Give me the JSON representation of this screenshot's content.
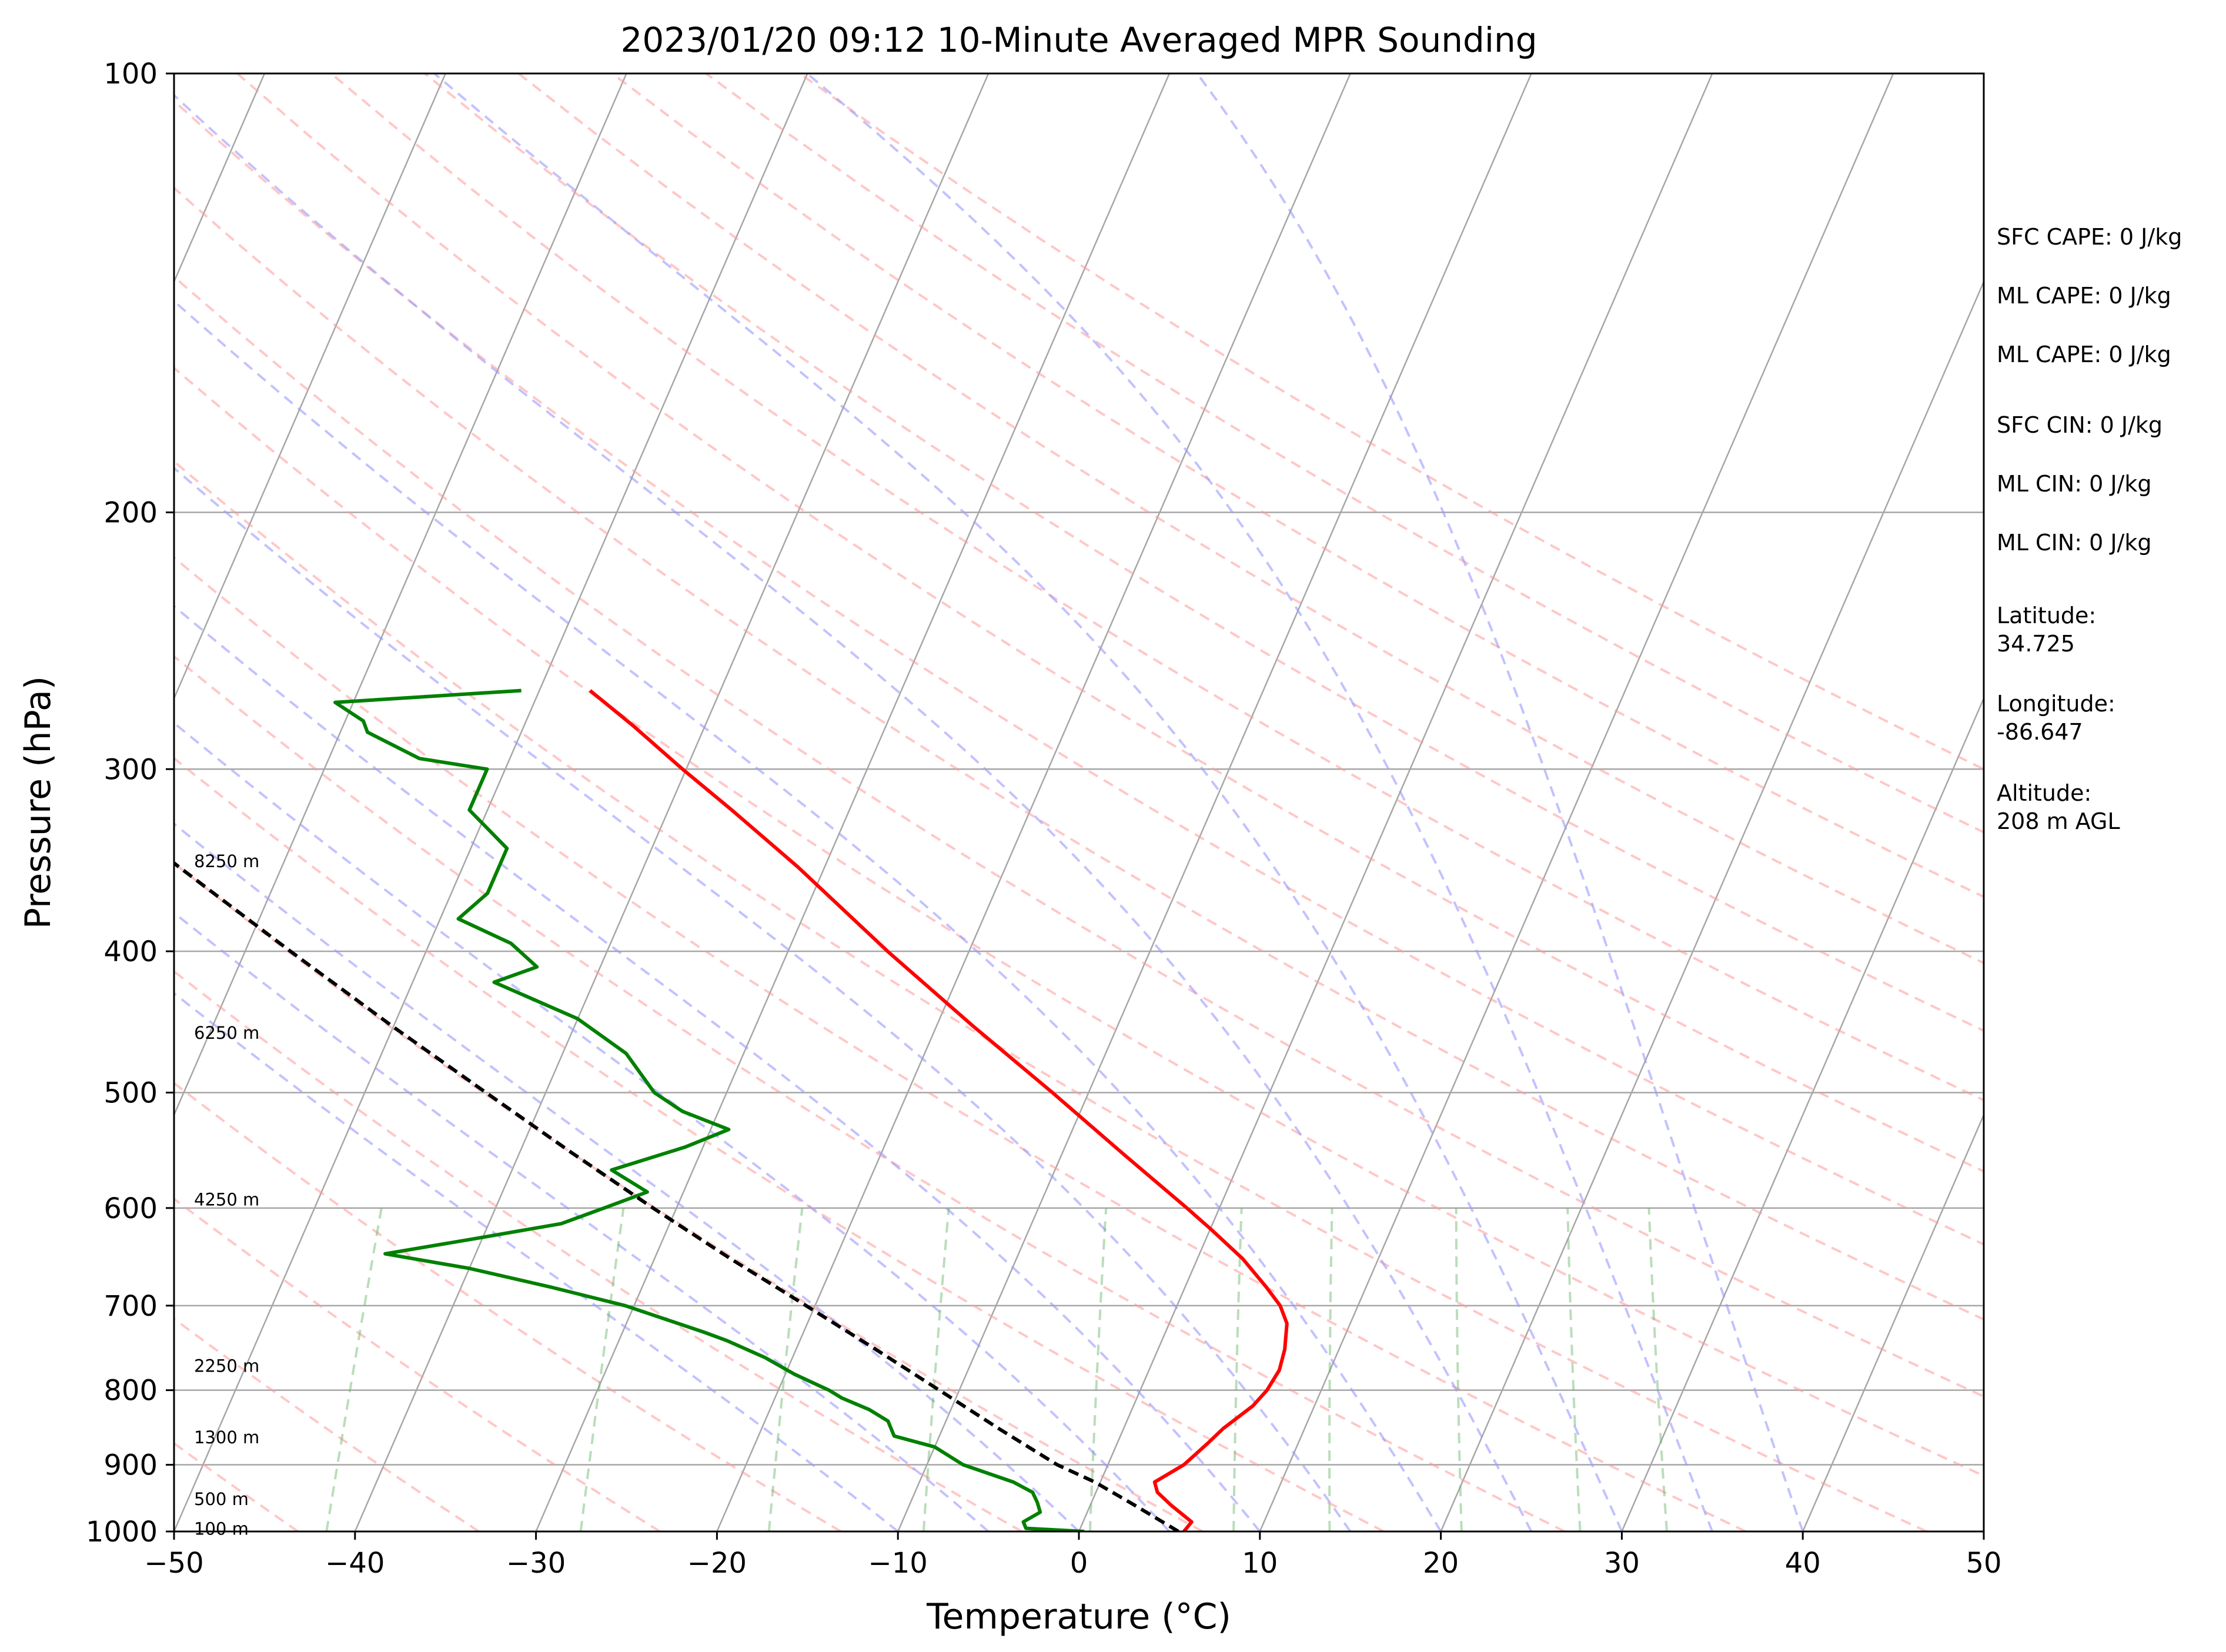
{
  "chart_data": {
    "type": "line",
    "subtype": "skew-t log-p",
    "title": "2023/01/20 09:12 10-Minute Averaged MPR Sounding",
    "xlabel": "Temperature (°C)",
    "ylabel": "Pressure (hPa)",
    "xlim": [
      -50,
      50
    ],
    "ylim": [
      1000,
      100
    ],
    "yscale": "log",
    "x_ticks": [
      "−50",
      "−40",
      "−30",
      "−20",
      "−10",
      "0",
      "10",
      "20",
      "30",
      "40",
      "50"
    ],
    "x_tick_values": [
      -50,
      -40,
      -30,
      -20,
      -10,
      0,
      10,
      20,
      30,
      40,
      50
    ],
    "y_ticks": [
      "100",
      "200",
      "300",
      "400",
      "500",
      "600",
      "700",
      "800",
      "900",
      "1000"
    ],
    "y_tick_values": [
      100,
      200,
      300,
      400,
      500,
      600,
      700,
      800,
      900,
      1000
    ],
    "series": [
      {
        "role": "temperature",
        "color": "#ff0000",
        "points": [
          [
            1000,
            5.8
          ],
          [
            985,
            6.0
          ],
          [
            960,
            4.5
          ],
          [
            940,
            3.4
          ],
          [
            925,
            3.0
          ],
          [
            900,
            4.2
          ],
          [
            870,
            5.0
          ],
          [
            850,
            5.5
          ],
          [
            820,
            6.6
          ],
          [
            800,
            7.0
          ],
          [
            775,
            7.2
          ],
          [
            750,
            7.0
          ],
          [
            720,
            6.5
          ],
          [
            700,
            5.7
          ],
          [
            680,
            4.5
          ],
          [
            650,
            2.5
          ],
          [
            620,
            0.0
          ],
          [
            600,
            -1.8
          ],
          [
            550,
            -6.7
          ],
          [
            500,
            -12.0
          ],
          [
            450,
            -18.0
          ],
          [
            400,
            -24.5
          ],
          [
            350,
            -31.5
          ],
          [
            320,
            -36.5
          ],
          [
            300,
            -40.2
          ],
          [
            280,
            -44.0
          ],
          [
            265,
            -47.2
          ]
        ]
      },
      {
        "role": "dewpoint",
        "color": "#008000",
        "points": [
          [
            1000,
            0.3
          ],
          [
            995,
            -3.0
          ],
          [
            985,
            -3.3
          ],
          [
            970,
            -2.6
          ],
          [
            955,
            -3.0
          ],
          [
            940,
            -3.5
          ],
          [
            925,
            -4.8
          ],
          [
            900,
            -8.0
          ],
          [
            875,
            -10.0
          ],
          [
            860,
            -12.5
          ],
          [
            840,
            -13.2
          ],
          [
            825,
            -14.5
          ],
          [
            810,
            -16.3
          ],
          [
            800,
            -17.2
          ],
          [
            780,
            -19.5
          ],
          [
            760,
            -21.5
          ],
          [
            740,
            -24.0
          ],
          [
            730,
            -25.5
          ],
          [
            700,
            -30.5
          ],
          [
            680,
            -35.0
          ],
          [
            660,
            -40.0
          ],
          [
            645,
            -45.0
          ],
          [
            630,
            -40.5
          ],
          [
            615,
            -36.0
          ],
          [
            600,
            -34.0
          ],
          [
            585,
            -32.0
          ],
          [
            565,
            -34.5
          ],
          [
            545,
            -31.0
          ],
          [
            530,
            -29.0
          ],
          [
            515,
            -32.0
          ],
          [
            500,
            -34.0
          ],
          [
            470,
            -36.5
          ],
          [
            445,
            -40.0
          ],
          [
            420,
            -45.5
          ],
          [
            410,
            -43.5
          ],
          [
            395,
            -45.5
          ],
          [
            380,
            -49.0
          ],
          [
            365,
            -48.0
          ],
          [
            340,
            -48.0
          ],
          [
            320,
            -51.0
          ],
          [
            312,
            -51.0
          ],
          [
            300,
            -51.0
          ],
          [
            295,
            -55.0
          ],
          [
            283,
            -58.5
          ],
          [
            278,
            -59.0
          ],
          [
            270,
            -61.0
          ],
          [
            265,
            -51.0
          ]
        ]
      },
      {
        "role": "parcel profile",
        "color": "#000000",
        "points": [
          [
            1000,
            5.5
          ],
          [
            960,
            2.5
          ],
          [
            925,
            -0.3
          ],
          [
            900,
            -2.8
          ],
          [
            850,
            -6.9
          ],
          [
            800,
            -11.1
          ],
          [
            750,
            -15.6
          ],
          [
            700,
            -20.5
          ],
          [
            650,
            -25.8
          ],
          [
            600,
            -31.3
          ],
          [
            550,
            -37.1
          ],
          [
            500,
            -43.3
          ],
          [
            450,
            -50.1
          ],
          [
            400,
            -57.5
          ],
          [
            350,
            -65.7
          ],
          [
            300,
            -74.9
          ],
          [
            265,
            -82.5
          ]
        ]
      }
    ],
    "height_labels": [
      {
        "text": "100 m",
        "pressure": 996
      },
      {
        "text": "500 m",
        "pressure": 950
      },
      {
        "text": "1300 m",
        "pressure": 862
      },
      {
        "text": "2250 m",
        "pressure": 770
      },
      {
        "text": "4250 m",
        "pressure": 592
      },
      {
        "text": "6250 m",
        "pressure": 455
      },
      {
        "text": "8250 m",
        "pressure": 347
      }
    ],
    "dry_adiabats_K": [
      210,
      220,
      230,
      240,
      250,
      260,
      270,
      280,
      290,
      300,
      310,
      320,
      330,
      340,
      350,
      360,
      370,
      380,
      390,
      400,
      410,
      420,
      430
    ],
    "moist_adiabats_C": [
      -10,
      -5,
      0,
      5,
      10,
      15,
      20,
      25,
      30,
      35,
      40
    ],
    "mixing_lines_gkg": [
      0.1,
      0.4,
      1,
      2,
      4,
      7,
      10,
      16,
      24,
      32
    ],
    "grid": true,
    "colors": {
      "dry_adiabat": "#ff9999",
      "moist_adiabat": "#9999ff",
      "mixing_ratio": "#66b366",
      "isotherm": "#a6a6a6"
    }
  },
  "info_panel": [
    "SFC CAPE: 0 J/kg",
    "ML CAPE: 0 J/kg",
    "ML CAPE: 0 J/kg",
    "SFC CIN: 0 J/kg",
    "ML CIN: 0 J/kg",
    "ML CIN: 0 J/kg",
    "Latitude:",
    "34.725",
    "Longitude:",
    "-86.647",
    "Altitude:",
    "208 m AGL"
  ]
}
